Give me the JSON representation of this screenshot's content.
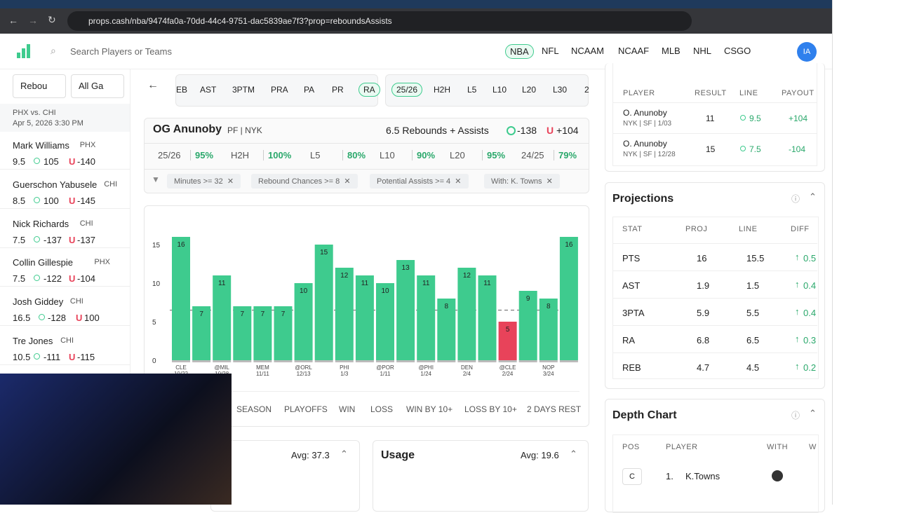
{
  "browser": {
    "url": "props.cash/nba/9474fa0a-70dd-44c4-9751-dac5839ae7f3?prop=reboundsAssists"
  },
  "nav": {
    "search_placeholder": "Search Players or Teams",
    "leagues": [
      "NBA",
      "NFL",
      "NCAAM",
      "NCAAF",
      "MLB",
      "NHL",
      "CSGO"
    ],
    "avatar": "IA"
  },
  "sidebar": {
    "filters": [
      "Rebou",
      "All Ga"
    ],
    "game": "PHX vs. CHI",
    "date": "Apr 5, 2026 3:30 PM",
    "under_label": "U",
    "players": [
      {
        "name": "Mark Williams",
        "team": "PHX",
        "line": "9.5",
        "over": "105",
        "under": "-140"
      },
      {
        "name": "Guerschon Yabusele",
        "team": "CHI",
        "line": "8.5",
        "over": "100",
        "under": "-145"
      },
      {
        "name": "Nick Richards",
        "team": "CHI",
        "line": "7.5",
        "over": "-137",
        "under": "-137"
      },
      {
        "name": "Collin Gillespie",
        "team": "PHX",
        "line": "7.5",
        "over": "-122",
        "under": "-104"
      },
      {
        "name": "Josh Giddey",
        "team": "CHI",
        "line": "16.5",
        "over": "-128",
        "under": "100"
      },
      {
        "name": "Tre Jones",
        "team": "CHI",
        "line": "10.5",
        "over": "-111",
        "under": "-115"
      }
    ]
  },
  "prop_tabs": [
    "EB",
    "AST",
    "3PTM",
    "PRA",
    "PA",
    "PR",
    "RA"
  ],
  "range_tabs": [
    "25/26",
    "H2H",
    "L5",
    "L10",
    "L20",
    "L30",
    "2"
  ],
  "player": {
    "name": "OG Anunoby",
    "position": "PF | NYK",
    "prop": "6.5 Rebounds + Assists",
    "over": "-138",
    "under_label": "U",
    "under": "+104"
  },
  "hit_rates": [
    {
      "label": "25/26",
      "pct": "95%"
    },
    {
      "label": "H2H",
      "pct": "100%"
    },
    {
      "label": "L5",
      "pct": "80%"
    },
    {
      "label": "L10",
      "pct": "90%"
    },
    {
      "label": "L20",
      "pct": "95%"
    },
    {
      "label": "24/25",
      "pct": "79%"
    }
  ],
  "filter_chips": [
    "Minutes >= 32",
    "Rebound Chances >= 8",
    "Potential Assists >= 4",
    "With: K. Towns"
  ],
  "chart_data": {
    "type": "bar",
    "categories": [
      "CLE",
      null,
      "@MIL",
      null,
      "MEM",
      null,
      "@ORL",
      null,
      "PHI",
      null,
      "@POR",
      null,
      "@PHI",
      null,
      "DEN",
      null,
      "@CLE",
      null,
      "NOP",
      null
    ],
    "category_dates": [
      "10/22",
      null,
      "10/28",
      null,
      "11/11",
      null,
      "12/13",
      null,
      "1/3",
      null,
      "1/11",
      null,
      "1/24",
      null,
      "2/4",
      null,
      "2/24",
      null,
      "3/24",
      null
    ],
    "values": [
      16,
      7,
      11,
      7,
      7,
      7,
      10,
      15,
      12,
      11,
      10,
      13,
      11,
      8,
      12,
      11,
      5,
      9,
      8,
      16
    ],
    "colors": [
      "#3ecb8e",
      "#3ecb8e",
      "#3ecb8e",
      "#3ecb8e",
      "#3ecb8e",
      "#3ecb8e",
      "#3ecb8e",
      "#3ecb8e",
      "#3ecb8e",
      "#3ecb8e",
      "#3ecb8e",
      "#3ecb8e",
      "#3ecb8e",
      "#3ecb8e",
      "#3ecb8e",
      "#3ecb8e",
      "#e8435a",
      "#3ecb8e",
      "#3ecb8e",
      "#3ecb8e"
    ],
    "line": 6.5,
    "ylim": [
      0,
      19
    ],
    "yticks": [
      0,
      5,
      10,
      15
    ]
  },
  "split_tabs": [
    "SEASON",
    "PLAYOFFS",
    "WIN",
    "LOSS",
    "WIN BY 10+",
    "LOSS BY 10+",
    "2 DAYS REST"
  ],
  "minutes_card": {
    "avg": "Avg: 37.3"
  },
  "usage_card": {
    "title": "Usage",
    "avg": "Avg: 19.6"
  },
  "recent": {
    "headers": [
      "PLAYER",
      "RESULT",
      "LINE",
      "PAYOUT"
    ],
    "rows": [
      {
        "name": "O. Anunoby",
        "sub": "NYK | SF | 1/03",
        "result": "11",
        "line": "9.5",
        "payout": "+104"
      },
      {
        "name": "O. Anunoby",
        "sub": "NYK | SF | 12/28",
        "result": "15",
        "line": "7.5",
        "payout": "-104"
      }
    ]
  },
  "projections": {
    "title": "Projections",
    "headers": [
      "STAT",
      "PROJ",
      "LINE",
      "DIFF"
    ],
    "rows": [
      [
        "PTS",
        "16",
        "15.5",
        "0.5"
      ],
      [
        "AST",
        "1.9",
        "1.5",
        "0.4"
      ],
      [
        "3PTA",
        "5.9",
        "5.5",
        "0.4"
      ],
      [
        "RA",
        "6.8",
        "6.5",
        "0.3"
      ],
      [
        "REB",
        "4.7",
        "4.5",
        "0.2"
      ]
    ]
  },
  "depth_chart": {
    "title": "Depth Chart",
    "headers": [
      "POS",
      "PLAYER",
      "WITH",
      "W"
    ],
    "rows": [
      [
        "C",
        "1.",
        "K.Towns"
      ]
    ]
  }
}
